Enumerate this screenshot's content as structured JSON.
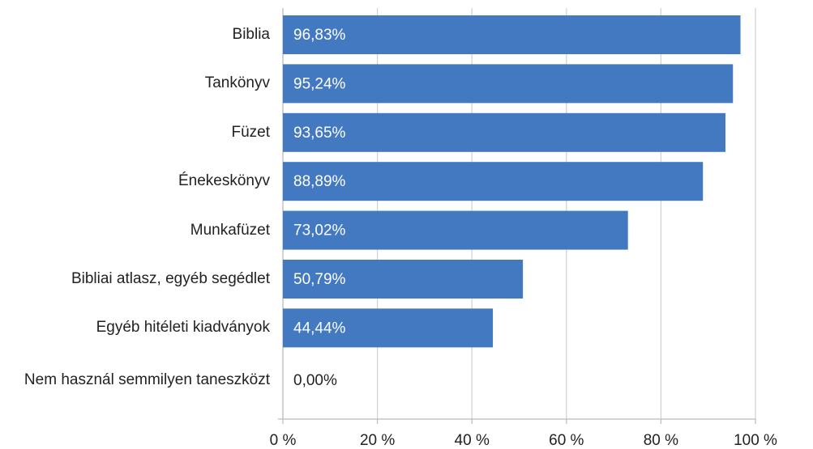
{
  "chart_data": {
    "type": "bar",
    "orientation": "horizontal",
    "categories": [
      "Biblia",
      "Tankönyv",
      "Füzet",
      "Énekeskönyv",
      "Munkafüzet",
      "Bibliai atlasz, egyéb segédlet",
      "Egyéb hitéleti kiadványok",
      "Nem használ semmilyen taneszközt"
    ],
    "values": [
      96.83,
      95.24,
      93.65,
      88.89,
      73.02,
      50.79,
      44.44,
      0
    ],
    "value_labels": [
      "96,83%",
      "95,24%",
      "93,65%",
      "88,89%",
      "73,02%",
      "50,79%",
      "44,44%",
      "0,00%"
    ],
    "color": "#4279c1",
    "xlim": [
      0,
      100
    ],
    "xticks": [
      {
        "value": 0,
        "label": "0 %"
      },
      {
        "value": 20,
        "label": "20 %"
      },
      {
        "value": 40,
        "label": "40 %"
      },
      {
        "value": 60,
        "label": "60 %"
      },
      {
        "value": 80,
        "label": "80 %"
      },
      {
        "value": 100,
        "label": "100 %"
      }
    ],
    "grid": true
  }
}
